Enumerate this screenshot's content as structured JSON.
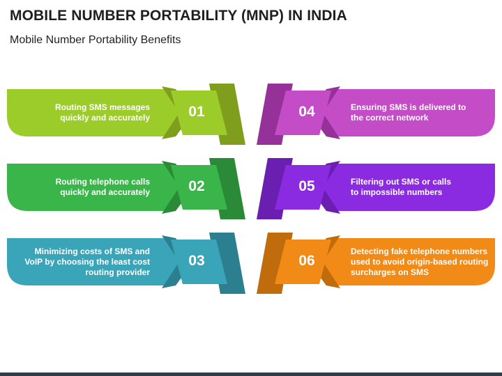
{
  "header": {
    "title": "MOBILE NUMBER PORTABILITY (MNP) IN INDIA",
    "subtitle": "Mobile Number Portability Benefits"
  },
  "items": [
    {
      "number": "01",
      "text_lines": [
        "Routing SMS messages",
        "quickly and accurately"
      ],
      "color": "#9ccc2a",
      "dark": "#7f9e1e"
    },
    {
      "number": "02",
      "text_lines": [
        "Routing telephone calls",
        "quickly and accurately"
      ],
      "color": "#3ab54a",
      "dark": "#2a8a37"
    },
    {
      "number": "03",
      "text_lines": [
        "Minimizing costs of SMS and",
        "VoIP by choosing the least cost",
        "routing provider"
      ],
      "color": "#3aa5b8",
      "dark": "#2b7f8e"
    },
    {
      "number": "04",
      "text_lines": [
        "Ensuring SMS is delivered to",
        "the correct network"
      ],
      "color": "#c44dc7",
      "dark": "#96319a"
    },
    {
      "number": "05",
      "text_lines": [
        "Filtering out SMS or calls",
        "to impossible numbers"
      ],
      "color": "#8a2be2",
      "dark": "#6a1fb0"
    },
    {
      "number": "06",
      "text_lines": [
        "Detecting fake telephone numbers",
        "used to avoid origin-based routing",
        "surcharges on SMS"
      ],
      "color": "#f18a16",
      "dark": "#c06c0c"
    }
  ]
}
